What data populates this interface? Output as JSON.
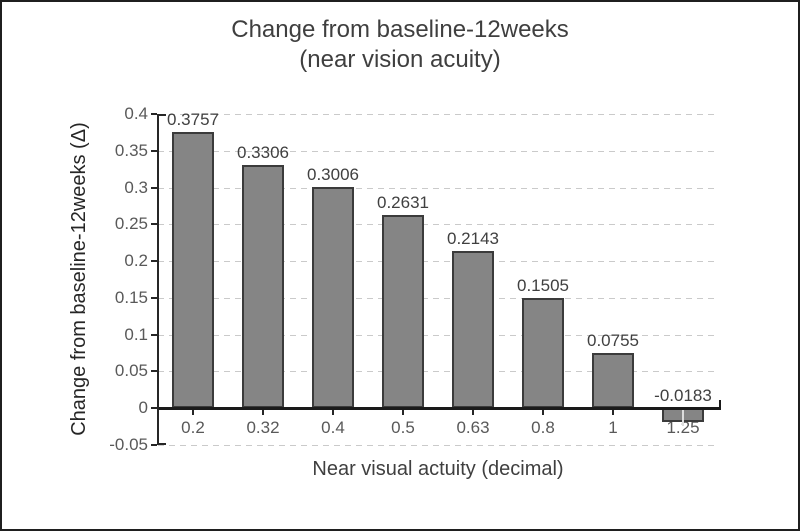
{
  "chart_data": {
    "type": "bar",
    "title_line1": "Change from baseline-12weeks",
    "title_line2": "(near vision acuity)",
    "xlabel": "Near visual actuity (decimal)",
    "ylabel": "Change from baseline-12weeks (Δ)",
    "categories": [
      "0.2",
      "0.32",
      "0.4",
      "0.5",
      "0.63",
      "0.8",
      "1",
      "1.25"
    ],
    "values": [
      0.3757,
      0.3306,
      0.3006,
      0.2631,
      0.2143,
      0.1505,
      0.0755,
      -0.0183
    ],
    "data_labels": [
      "0.3757",
      "0.3306",
      "0.3006",
      "0.2631",
      "0.2143",
      "0.1505",
      "0.0755",
      "-0.0183"
    ],
    "yticks": [
      "0.4",
      "0.35",
      "0.3",
      "0.25",
      "0.2",
      "0.15",
      "0.1",
      "0.05",
      "0",
      "-0.05"
    ],
    "ylim": [
      -0.05,
      0.4
    ],
    "ytick_step": 0.05,
    "grid": "horizontal-dashed",
    "legend_position": "none",
    "colors": {
      "bar_fill": "#858585",
      "bar_border": "#3b3b3b",
      "gridline": "#cacaca",
      "axis": "#262626",
      "tick_label": "#595959",
      "data_label": "#404040",
      "title": "#3f3f3f",
      "frame_border": "#1f1f1f"
    }
  }
}
